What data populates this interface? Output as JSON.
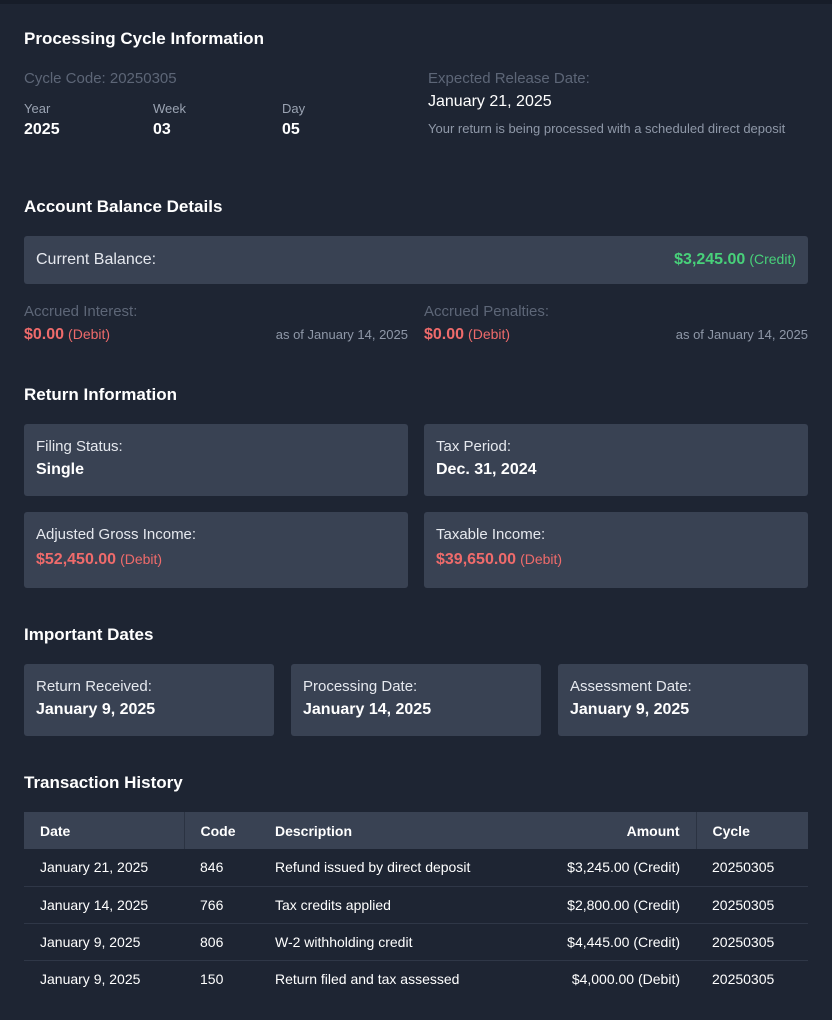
{
  "cycle": {
    "title": "Processing Cycle Information",
    "code_label": "Cycle Code: 20250305",
    "year_label": "Year",
    "year": "2025",
    "week_label": "Week",
    "week": "03",
    "day_label": "Day",
    "day": "05",
    "release_label": "Expected Release Date:",
    "release_date": "January 21, 2025",
    "release_note": "Your return is being processed with a scheduled direct deposit"
  },
  "balance": {
    "title": "Account Balance Details",
    "current_label": "Current Balance:",
    "current_amount": "$3,245.00",
    "current_type": "(Credit)",
    "interest_label": "Accrued Interest:",
    "interest_amount": "$0.00",
    "interest_type": "(Debit)",
    "interest_asof": "as of January 14, 2025",
    "penalties_label": "Accrued Penalties:",
    "penalties_amount": "$0.00",
    "penalties_type": "(Debit)",
    "penalties_asof": "as of January 14, 2025"
  },
  "return_info": {
    "title": "Return Information",
    "filing_label": "Filing Status:",
    "filing_value": "Single",
    "period_label": "Tax Period:",
    "period_value": "Dec. 31, 2024",
    "agi_label": "Adjusted Gross Income:",
    "agi_amount": "$52,450.00",
    "agi_type": "(Debit)",
    "taxable_label": "Taxable Income:",
    "taxable_amount": "$39,650.00",
    "taxable_type": "(Debit)"
  },
  "dates": {
    "title": "Important Dates",
    "received_label": "Return Received:",
    "received_value": "January 9, 2025",
    "processing_label": "Processing Date:",
    "processing_value": "January 14, 2025",
    "assessment_label": "Assessment Date:",
    "assessment_value": "January 9, 2025"
  },
  "transactions": {
    "title": "Transaction History",
    "headers": {
      "date": "Date",
      "code": "Code",
      "description": "Description",
      "amount": "Amount",
      "cycle": "Cycle"
    },
    "rows": [
      {
        "date": "January 21, 2025",
        "code": "846",
        "description": "Refund issued by direct deposit",
        "amount": "$3,245.00 (Credit)",
        "cycle": "20250305"
      },
      {
        "date": "January 14, 2025",
        "code": "766",
        "description": "Tax credits applied",
        "amount": "$2,800.00 (Credit)",
        "cycle": "20250305"
      },
      {
        "date": "January 9, 2025",
        "code": "806",
        "description": "W-2 withholding credit",
        "amount": "$4,445.00 (Credit)",
        "cycle": "20250305"
      },
      {
        "date": "January 9, 2025",
        "code": "150",
        "description": "Return filed and tax assessed",
        "amount": "$4,000.00 (Debit)",
        "cycle": "20250305"
      }
    ]
  },
  "colors": {
    "background": "#1e2533",
    "card": "#394253",
    "credit": "#48d17a",
    "debit": "#ef6b6b"
  }
}
